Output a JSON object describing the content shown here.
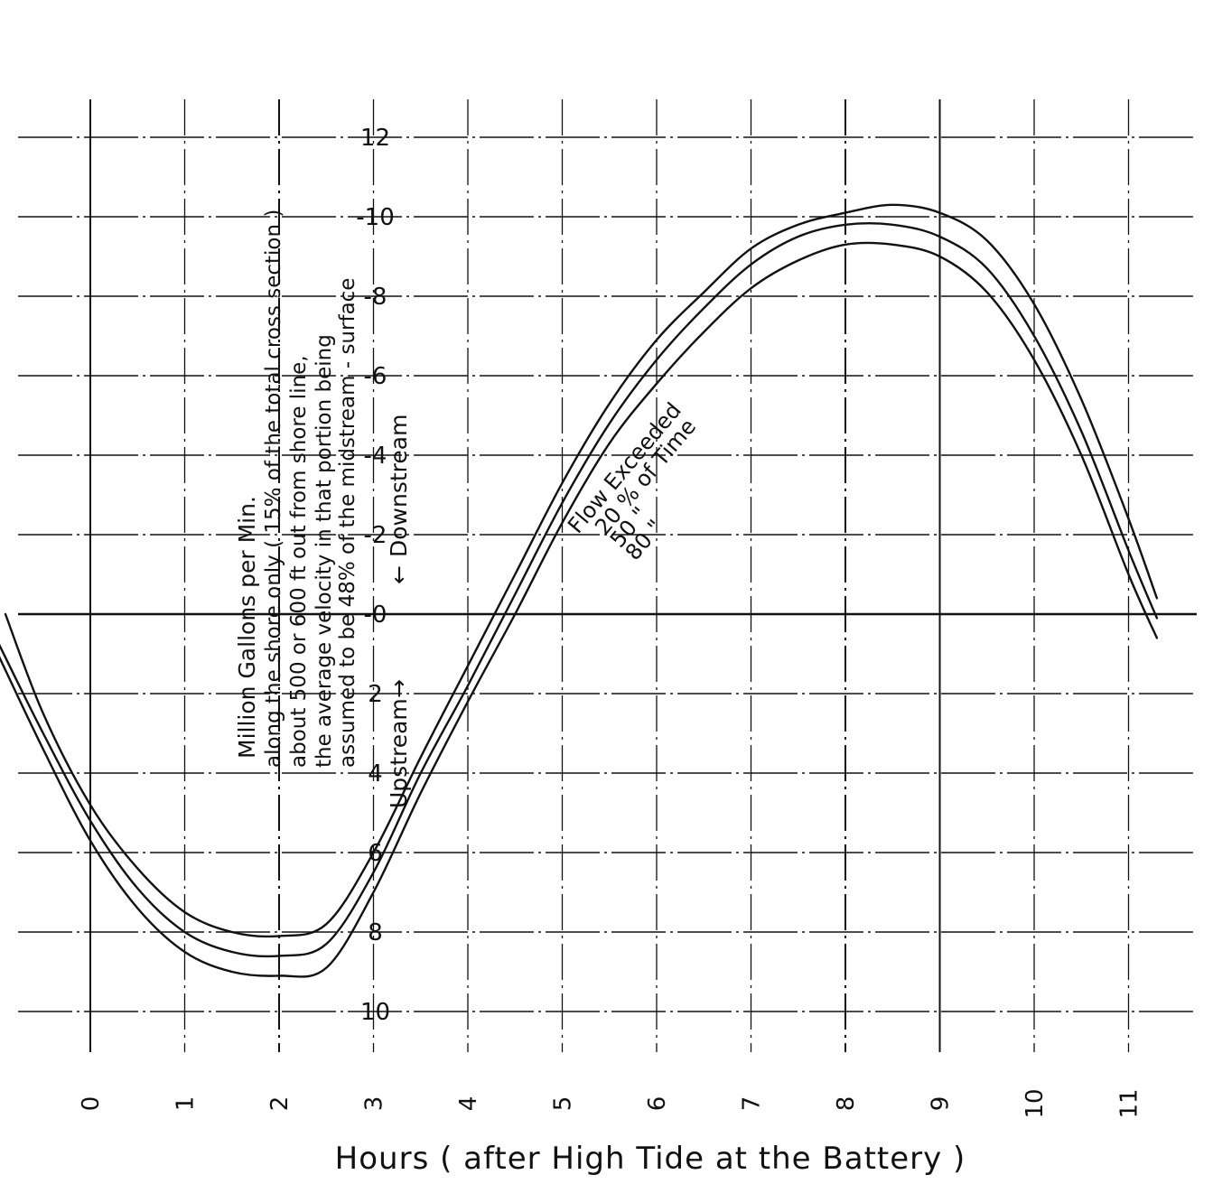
{
  "chart_data": {
    "type": "line",
    "xlabel": "Hours ( after High Tide at the Battery )",
    "ylabel": "Million Gallons per Min.",
    "ylabel_note_lines": [
      "along the shore only ( 15% of the total cross section )",
      "about 500 or 600 ft out from shore line,",
      "the average velocity in that portion being",
      "assumed to be 48% of the midstream - surface"
    ],
    "direction_labels": {
      "upstream": "Upstream",
      "downstream": "Downstream",
      "arrow_up": "→",
      "arrow_down": "←"
    },
    "x_ticks": [
      "0",
      "1",
      "2",
      "3",
      "4",
      "5",
      "6",
      "7",
      "8",
      "9",
      "10",
      "11"
    ],
    "y_ticks": [
      {
        "value": 12,
        "label": "12"
      },
      {
        "value": 10,
        "label": "-10"
      },
      {
        "value": 8,
        "label": "-8"
      },
      {
        "value": 6,
        "label": "-6"
      },
      {
        "value": 4,
        "label": "-4"
      },
      {
        "value": 2,
        "label": "-2"
      },
      {
        "value": 0,
        "label": "-0"
      },
      {
        "value": -2,
        "label": "2"
      },
      {
        "value": -4,
        "label": "4"
      },
      {
        "value": -6,
        "label": "6"
      },
      {
        "value": -8,
        "label": "8"
      },
      {
        "value": -10,
        "label": "10"
      }
    ],
    "xlim": [
      -1,
      11.8
    ],
    "ylim": [
      -12,
      12
    ],
    "grid": true,
    "legend": {
      "title": "Flow Exceeded",
      "entries": [
        "20 % of Time",
        "50 \"",
        "80 \""
      ]
    },
    "series": [
      {
        "x": [
          -0.9,
          -0.5,
          0,
          0.5,
          1,
          1.5,
          2,
          2.5,
          3,
          3.5,
          4,
          4.5,
          5,
          5.5,
          6,
          6.5,
          7,
          7.5,
          8,
          8.5,
          9,
          9.5,
          10,
          10.5,
          11,
          11.3
        ],
        "values": [
          0.0,
          -2.5,
          -4.8,
          -6.4,
          -7.5,
          -8.0,
          -8.1,
          -7.8,
          -6.0,
          -3.6,
          -1.3,
          1.0,
          3.3,
          5.3,
          6.9,
          8.1,
          9.2,
          9.8,
          10.1,
          10.3,
          10.1,
          9.4,
          7.8,
          5.4,
          2.4,
          0.4
        ]
      },
      {
        "x": [
          -1.0,
          -0.5,
          0,
          0.5,
          1,
          1.5,
          2,
          2.5,
          3,
          3.5,
          4,
          4.5,
          5,
          5.5,
          6,
          6.5,
          7,
          7.5,
          8,
          8.5,
          9,
          9.5,
          10,
          10.5,
          11,
          11.3
        ],
        "values": [
          -0.6,
          -3.0,
          -5.2,
          -6.9,
          -8.0,
          -8.5,
          -8.6,
          -8.3,
          -6.5,
          -4.0,
          -1.8,
          0.5,
          2.8,
          4.8,
          6.4,
          7.7,
          8.8,
          9.5,
          9.8,
          9.8,
          9.5,
          8.7,
          7.0,
          4.6,
          1.6,
          -0.1
        ]
      },
      {
        "x": [
          -1.0,
          -0.5,
          0,
          0.5,
          1,
          1.5,
          2,
          2.5,
          3,
          3.5,
          4,
          4.5,
          5,
          5.5,
          6,
          6.5,
          7,
          7.5,
          8,
          8.5,
          9,
          9.5,
          10,
          10.5,
          11,
          11.3
        ],
        "values": [
          -0.9,
          -3.4,
          -5.7,
          -7.4,
          -8.5,
          -9.0,
          -9.1,
          -8.9,
          -7.0,
          -4.5,
          -2.2,
          0.0,
          2.3,
          4.3,
          5.8,
          7.1,
          8.2,
          8.9,
          9.3,
          9.3,
          9.0,
          8.1,
          6.4,
          4.0,
          1.0,
          -0.6
        ]
      }
    ]
  }
}
